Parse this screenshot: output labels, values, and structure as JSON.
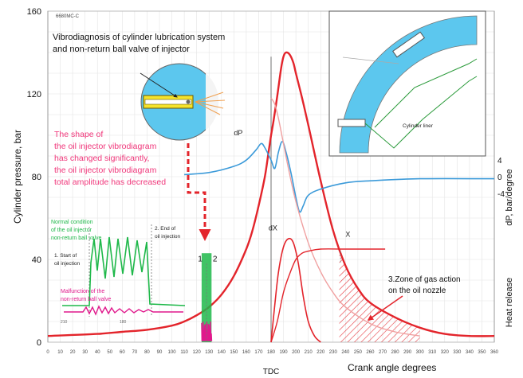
{
  "chart_data": {
    "type": "line",
    "figure_id": "6680MC-C",
    "title_lines": [
      "Vibrodiagnosis of cylinder lubrication system",
      "and non-return ball valve of injector"
    ],
    "xlabel": "Crank angle degrees",
    "x_tdc_label": "TDC",
    "ylabel_left": "Cylinder pressure, bar",
    "ylabel_right_top": "dP, bar/degree",
    "ylabel_right_bottom": "Heat release",
    "xlim": [
      0,
      360
    ],
    "ylim_left": [
      0,
      160
    ],
    "x_ticks": [
      0,
      10,
      20,
      30,
      40,
      50,
      60,
      70,
      80,
      90,
      100,
      110,
      120,
      130,
      140,
      150,
      160,
      170,
      180,
      190,
      200,
      210,
      220,
      230,
      240,
      250,
      260,
      270,
      280,
      290,
      300,
      310,
      320,
      330,
      340,
      350,
      360
    ],
    "y_ticks_left": [
      0,
      40,
      80,
      120,
      160
    ],
    "y_ticks_right": [
      {
        "label": "4",
        "value": 4,
        "at_pressure": 88
      },
      {
        "label": "0",
        "value": 0,
        "at_pressure": 80
      },
      {
        "label": "-4",
        "value": -4,
        "at_pressure": 72
      }
    ],
    "tdc_angle": 180,
    "series": [
      {
        "name": "",
        "role": "cylinder-pressure",
        "color": "#e3242b",
        "x": [
          0,
          40,
          60,
          80,
          100,
          110,
          120,
          130,
          140,
          150,
          160,
          165,
          170,
          175,
          178,
          180,
          182,
          185,
          188,
          190,
          192,
          195,
          198,
          200,
          205,
          210,
          220,
          230,
          240,
          250,
          260,
          280,
          300,
          320,
          340,
          360
        ],
        "y": [
          3,
          4,
          5,
          6,
          8,
          10,
          13,
          17,
          23,
          32,
          45,
          54,
          66,
          80,
          92,
          100,
          107,
          119,
          132,
          138,
          140,
          139,
          135,
          130,
          118,
          105,
          78,
          54,
          37,
          26,
          19,
          12,
          7,
          4,
          3,
          3
        ]
      },
      {
        "name": "dP",
        "role": "pressure-derivative",
        "color": "#3b9ad9",
        "x": [
          110,
          130,
          150,
          160,
          168,
          172,
          175,
          180,
          183,
          186,
          189,
          192,
          196,
          200,
          203,
          206,
          210,
          220,
          240,
          260,
          300,
          360
        ],
        "y": [
          81,
          82,
          85,
          88,
          93,
          96,
          94,
          88,
          84,
          92,
          97,
          92,
          82,
          70,
          63,
          66,
          71,
          74,
          77,
          78,
          79,
          79
        ]
      },
      {
        "name": "",
        "role": "pressure-reference",
        "color": "#f0a0a0",
        "x": [
          180,
          183,
          186,
          190,
          194,
          200,
          210,
          220,
          230,
          240,
          260,
          280,
          300
        ],
        "y": [
          118,
          115,
          108,
          96,
          84,
          68,
          48,
          34,
          24,
          17,
          9,
          5,
          3
        ]
      },
      {
        "name": "dX",
        "role": "heat-release-rate",
        "color": "#e3242b",
        "x": [
          180,
          183,
          186,
          190,
          194,
          198,
          202,
          206,
          210,
          215,
          220
        ],
        "y": [
          0,
          18,
          34,
          46,
          50,
          48,
          38,
          22,
          10,
          3,
          0
        ]
      },
      {
        "name": "X",
        "role": "heat-release",
        "color": "#e3242b",
        "x": [
          180,
          185,
          190,
          195,
          200,
          205,
          210,
          220,
          240,
          260,
          272
        ],
        "y": [
          0,
          10,
          24,
          33,
          40,
          43,
          44,
          45,
          45,
          45,
          45
        ]
      }
    ],
    "injector_signal": {
      "role": "injector-vibration-burst",
      "x_range": [
        124,
        132
      ],
      "green_top": 43,
      "magenta_top": 10,
      "marker_x": 128,
      "marker_label": "1",
      "marker2_label": "2"
    },
    "shaded_zone": {
      "x_range": [
        235,
        300
      ],
      "color": "#e3242b"
    },
    "annotations": {
      "pink_note": [
        "The shape of",
        "the oil injector vibrodiagram",
        "has changed significantly,",
        "the oil injector vibrodiagram",
        "total amplitude has decreased"
      ],
      "zone_label": [
        "3.Zone of gas action",
        "on the oil nozzle"
      ],
      "inset_normal": [
        "Normal condition",
        "of the oil injector",
        "non-return ball valve"
      ],
      "inset_start": [
        "1. Start of",
        "oil injection"
      ],
      "inset_end": [
        "2. End of",
        "oil injection"
      ],
      "inset_malfunction": [
        "Malfunction of the",
        "non-return ball valve"
      ],
      "inset_axis_left": "210",
      "inset_axis_right": "180",
      "liner_label": "Cylinder liner"
    },
    "colors": {
      "pressure": "#e3242b",
      "dP": "#3b9ad9",
      "normal": "#1fb84a",
      "malfunction": "#e0198c",
      "pink_note": "#f0367a",
      "liner": "#5cc7ee"
    }
  }
}
